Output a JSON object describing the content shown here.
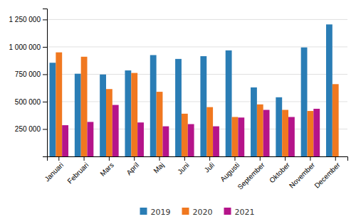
{
  "chart_data": {
    "type": "bar",
    "categories": [
      "Januari",
      "Februari",
      "Mars",
      "April",
      "Maj",
      "Juni",
      "Juli",
      "Augusti",
      "September",
      "Oktober",
      "November",
      "December"
    ],
    "series": [
      {
        "name": "2019",
        "color": "#2a7db5",
        "values": [
          855000,
          755000,
          748000,
          785000,
          925000,
          890000,
          915000,
          968000,
          630000,
          540000,
          995000,
          1205000
        ]
      },
      {
        "name": "2020",
        "color": "#f07820",
        "values": [
          950000,
          910000,
          615000,
          762000,
          590000,
          390000,
          450000,
          360000,
          475000,
          425000,
          415000,
          660000
        ]
      },
      {
        "name": "2021",
        "color": "#b5148a",
        "values": [
          285000,
          315000,
          470000,
          310000,
          275000,
          295000,
          275000,
          355000,
          425000,
          360000,
          435000,
          0
        ]
      }
    ],
    "ylim": [
      0,
      1350000
    ],
    "yticks": [
      {
        "value": 0,
        "label": null
      },
      {
        "value": 250000,
        "label": "250 000"
      },
      {
        "value": 500000,
        "label": "500 000"
      },
      {
        "value": 750000,
        "label": "750 000"
      },
      {
        "value": 1000000,
        "label": "1 000 000"
      },
      {
        "value": 1250000,
        "label": "1 250 000"
      }
    ],
    "grid": true,
    "legend": "bottom"
  }
}
